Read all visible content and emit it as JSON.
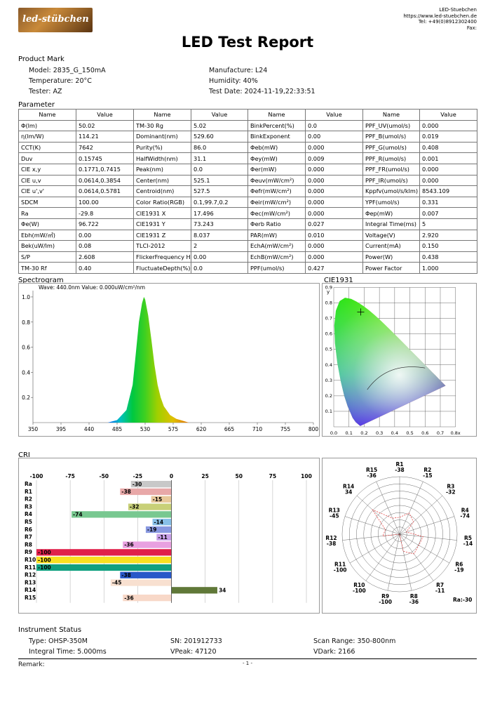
{
  "header": {
    "logo_text": "led-stübchen",
    "company_lines": [
      "LED-Stuebchen",
      "https://www.led-stuebchen.de",
      "Tel: +49(0)8912302400",
      "Fax:"
    ],
    "title": "LED Test Report"
  },
  "product_mark": {
    "heading": "Product Mark",
    "left": [
      "Model: 2835_G_150mA",
      "Temperature: 20°C",
      "Tester: AZ"
    ],
    "right": [
      "Manufacture: L24",
      "Humidity: 40%",
      "Test Date: 2024-11-19,22:33:51"
    ]
  },
  "parameter": {
    "heading": "Parameter",
    "header": [
      "Name",
      "Value",
      "Name",
      "Value",
      "Name",
      "Value",
      "Name",
      "Value"
    ],
    "rows": [
      [
        "Φ(lm)",
        "50.02",
        "TM-30 Rg",
        "5.02",
        "BinkPercent(%)",
        "0.0",
        "PPF_UV(umol/s)",
        "0.000"
      ],
      [
        "η(lm/W)",
        "114.21",
        "Dominant(nm)",
        "529.60",
        "BinkExponent",
        "0.00",
        "PPF_B(umol/s)",
        "0.019"
      ],
      [
        "CCT(K)",
        "7642",
        "Purity(%)",
        "86.0",
        "Φeb(mW)",
        "0.000",
        "PPF_G(umol/s)",
        "0.408"
      ],
      [
        "Duv",
        "0.15745",
        "HalfWidth(nm)",
        "31.1",
        "Φey(mW)",
        "0.009",
        "PPF_R(umol/s)",
        "0.001"
      ],
      [
        "CIE x,y",
        "0.1771,0.7415",
        "Peak(nm)",
        "0.0",
        "Φer(mW)",
        "0.000",
        "PPF_FR(umol/s)",
        "0.000"
      ],
      [
        "CIE u,v",
        "0.0614,0.3854",
        "Center(nm)",
        "525.1",
        "Φeuv(mW/cm²)",
        "0.000",
        "PPF_IR(umol/s)",
        "0.000"
      ],
      [
        "CIE u',v'",
        "0.0614,0.5781",
        "Centroid(nm)",
        "527.5",
        "Φefr(mW/cm²)",
        "0.000",
        "Kppfv(umol/s/klm)",
        "8543.109"
      ],
      [
        "SDCM",
        "100.00",
        "Color Ratio(RGB)",
        "0.1,99.7,0.2",
        "Φeir(mW/cm²)",
        "0.000",
        "YPF(umol/s)",
        "0.331"
      ],
      [
        "Ra",
        "-29.8",
        "CIE1931 X",
        "17.496",
        "Φec(mW/cm²)",
        "0.000",
        "Φep(mW)",
        "0.007"
      ],
      [
        "Φe(W)",
        "96.722",
        "CIE1931 Y",
        "73.243",
        "Φerb Ratio",
        "0.027",
        "Integral Time(ms)",
        "5"
      ],
      [
        "Ebh(mW/㎡)",
        "0.00",
        "CIE1931 Z",
        "8.037",
        "PAR(mW)",
        "0.010",
        "Voltage(V)",
        "2.920"
      ],
      [
        "Bek(uW/lm)",
        "0.08",
        "TLCI-2012",
        "2",
        "EchA(mW/cm²)",
        "0.000",
        "Current(mA)",
        "0.150"
      ],
      [
        "S/P",
        "2.608",
        "FlickerFrequency Hz",
        "0.00",
        "EchB(mW/cm²)",
        "0.000",
        "Power(W)",
        "0.438"
      ],
      [
        "TM-30 Rf",
        "0.40",
        "FluctuateDepth(%)",
        "0.0",
        "PPF(umol/s)",
        "0.427",
        "Power Factor",
        "1.000"
      ]
    ]
  },
  "spectrogram": {
    "heading": "Spectrogram",
    "readout": "Wave: 440.0nm Value: 0.000uW/cm²/nm",
    "x_ticks": [
      "350",
      "395",
      "440",
      "485",
      "530",
      "575",
      "620",
      "665",
      "710",
      "755",
      "800"
    ],
    "y_ticks": [
      "1.0",
      "0.8",
      "0.6",
      "0.4",
      "0.2"
    ]
  },
  "cie1931": {
    "heading": "CIE1931",
    "x_ticks": [
      "0.0",
      "0.1",
      "0.2",
      "0.3",
      "0.4",
      "0.5",
      "0.6",
      "0.7",
      "0.8x"
    ],
    "y_ticks": [
      "0.9",
      "0.8",
      "0.7",
      "0.6",
      "0.5",
      "0.4",
      "0.3",
      "0.2",
      "0.1"
    ],
    "y_label": "y",
    "point_x": 0.1771,
    "point_y": 0.7415
  },
  "cri": {
    "heading": "CRI",
    "x_ticks": [
      "-100",
      "-75",
      "-50",
      "-25",
      "0",
      "25",
      "50",
      "75",
      "100"
    ],
    "ra_text": "Ra:-30"
  },
  "chart_data": [
    {
      "type": "line",
      "title": "Spectrogram",
      "xlim": [
        350,
        800
      ],
      "ylim": [
        0,
        1.05
      ],
      "x": [
        470,
        485,
        500,
        510,
        515,
        520,
        525,
        528,
        530,
        535,
        540,
        545,
        550,
        555,
        560,
        570,
        580,
        590,
        600
      ],
      "y": [
        0.0,
        0.02,
        0.1,
        0.3,
        0.55,
        0.8,
        0.95,
        1.0,
        0.98,
        0.85,
        0.66,
        0.46,
        0.3,
        0.2,
        0.13,
        0.06,
        0.03,
        0.015,
        0.0
      ]
    },
    {
      "type": "bar",
      "title": "CRI",
      "categories": [
        "Ra",
        "R1",
        "R2",
        "R3",
        "R4",
        "R5",
        "R6",
        "R7",
        "R8",
        "R9",
        "R10",
        "R11",
        "R12",
        "R13",
        "R14",
        "R15"
      ],
      "values": [
        -30,
        -38,
        -15,
        -32,
        -74,
        -14,
        -19,
        -11,
        -36,
        -100,
        -100,
        -100,
        -38,
        -45,
        34,
        -36
      ],
      "colors": [
        "#c8c8c8",
        "#e8a8a8",
        "#e8c89a",
        "#c8d078",
        "#78c890",
        "#88c0e8",
        "#8898e0",
        "#c8a0e8",
        "#e8a0e0",
        "#e0204a",
        "#f8e020",
        "#10a080",
        "#2858c8",
        "#f8e0d0",
        "#607838",
        "#f8d8c8"
      ],
      "xlim": [
        -100,
        100
      ]
    },
    {
      "type": "scatter",
      "title": "CRI radar",
      "categories": [
        "R1",
        "R2",
        "R3",
        "R4",
        "R5",
        "R6",
        "R7",
        "R8",
        "R9",
        "R10",
        "R11",
        "R12",
        "R13",
        "R14",
        "R15"
      ],
      "values": [
        -38,
        -15,
        -32,
        -74,
        -14,
        -19,
        -11,
        -36,
        -100,
        -100,
        -100,
        -38,
        -45,
        34,
        -36
      ]
    }
  ],
  "instrument": {
    "heading": "Instrument Status",
    "items": [
      "Type: OHSP-350M",
      "SN: 201912733",
      "Scan Range: 350-800nm",
      "Integral Time: 5.000ms",
      "VPeak: 47120",
      "VDark: 2166"
    ]
  },
  "footer": {
    "remark": "Remark:",
    "page": "- 1 -"
  }
}
